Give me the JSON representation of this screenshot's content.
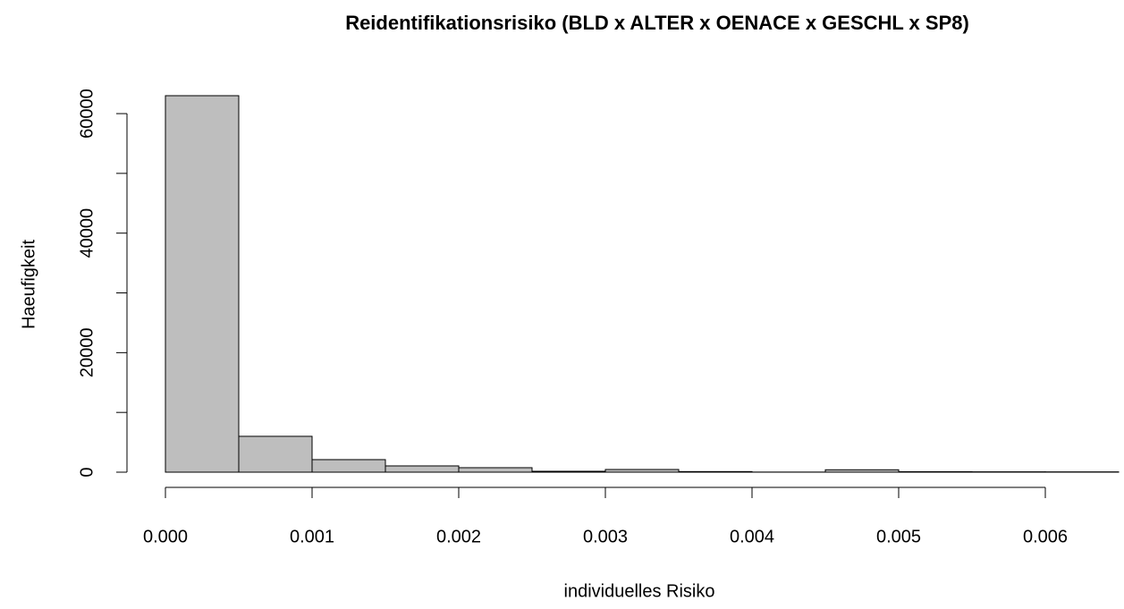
{
  "chart_data": {
    "type": "histogram",
    "title": "Reidentifikationsrisiko (BLD x ALTER x OENACE x GESCHL x SP8)",
    "x_label": "individuelles Risiko",
    "y_label": "Haeufigkeit",
    "bins": [
      0,
      0.0005,
      0.001,
      0.0015,
      0.002,
      0.0025,
      0.003,
      0.0035,
      0.004,
      0.0045,
      0.005,
      0.0055,
      0.006,
      0.0065
    ],
    "counts": [
      63000,
      6000,
      2100,
      1050,
      750,
      150,
      450,
      100,
      20,
      400,
      80,
      60,
      50
    ],
    "color": "#bebebe",
    "xlim": [
      0,
      0.0065
    ],
    "ylim": [
      0,
      63000
    ],
    "xticks": [
      {
        "value": 0,
        "label": "0.000"
      },
      {
        "value": 0.001,
        "label": "0.001"
      },
      {
        "value": 0.002,
        "label": "0.002"
      },
      {
        "value": 0.003,
        "label": "0.003"
      },
      {
        "value": 0.004,
        "label": "0.004"
      },
      {
        "value": 0.005,
        "label": "0.005"
      },
      {
        "value": 0.006,
        "label": "0.006"
      }
    ],
    "yticks": [
      0,
      20000,
      40000,
      60000
    ],
    "yminor_ticks": [
      10000,
      30000,
      50000
    ]
  }
}
